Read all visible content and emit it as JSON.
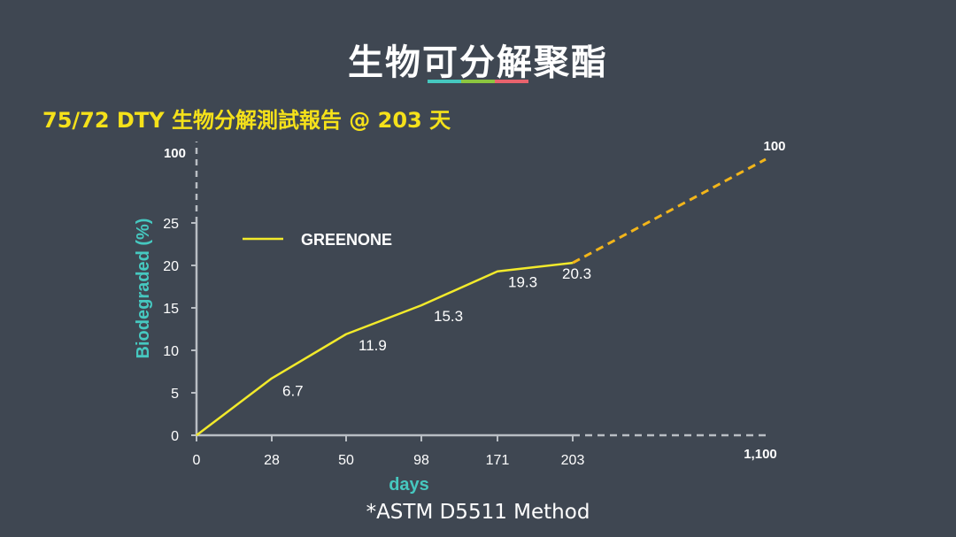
{
  "slide": {
    "title": "生物可分解聚酯",
    "title_bar_colors": [
      "#46c8c0",
      "#8cc63f",
      "#e9636d"
    ],
    "subtitle": "75/72 DTY 生物分解測試報告 @ 203 天",
    "footnote": "*ASTM D5511 Method"
  },
  "colors": {
    "background": "#3f4752",
    "series": "#f2ea2b",
    "projection": "#f2b51a",
    "axis": "#b9bec4",
    "axis_title": "#46c8c0",
    "subtitle": "#f5e11a"
  },
  "chart_data": {
    "type": "line",
    "xlabel": "days",
    "ylabel": "Biodegraded (%)",
    "x_ticks": [
      "0",
      "28",
      "50",
      "98",
      "171",
      "203"
    ],
    "x_tick_far": "1,100",
    "y_ticks": [
      "0",
      "5",
      "10",
      "15",
      "20",
      "25"
    ],
    "y_tick_top": "100",
    "ylim": [
      0,
      25
    ],
    "axis_break": true,
    "legend": {
      "position": "upper-left",
      "entries": [
        "GREENONE"
      ]
    },
    "series": [
      {
        "name": "GREENONE",
        "x": [
          0,
          28,
          50,
          98,
          171,
          203
        ],
        "values": [
          0,
          6.7,
          11.9,
          15.3,
          19.3,
          20.3
        ],
        "labels": [
          "",
          "6.7",
          "11.9",
          "15.3",
          "19.3",
          "20.3"
        ]
      }
    ],
    "projection": {
      "style": "dashed",
      "from": {
        "x": 203,
        "y": 20.3
      },
      "to": {
        "x": 1100,
        "y": 100
      },
      "end_label": "100"
    }
  }
}
